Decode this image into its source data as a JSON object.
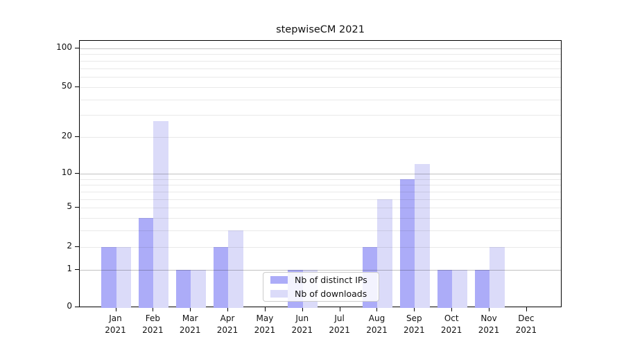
{
  "title": "stepwiseCM 2021",
  "legend": {
    "items": [
      {
        "label": "Nb of distinct IPs",
        "color": "#acacf8"
      },
      {
        "label": "Nb of downloads",
        "color": "#dbdbf9"
      }
    ]
  },
  "colors": {
    "distinct_ips_bar": "#acacf8",
    "downloads_bar": "#dbdbf9",
    "axis_spine": "#000000",
    "major_gridline": "#c2c2c2",
    "minor_gridline": "#eaeaea",
    "text": "#111111"
  },
  "y_axis": {
    "tick_labels": [
      "100",
      "50",
      "20",
      "10",
      "5",
      "2",
      "1",
      "0"
    ]
  },
  "x_axis": {
    "tick_labels": [
      "Jan 2021",
      "Feb 2021",
      "Mar 2021",
      "Apr 2021",
      "May 2021",
      "Jun 2021",
      "Jul 2021",
      "Aug 2021",
      "Sep 2021",
      "Oct 2021",
      "Nov 2021",
      "Dec 2021"
    ]
  },
  "chart_data": {
    "type": "bar",
    "title": "stepwiseCM 2021",
    "categories": [
      "Jan 2021",
      "Feb 2021",
      "Mar 2021",
      "Apr 2021",
      "May 2021",
      "Jun 2021",
      "Jul 2021",
      "Aug 2021",
      "Sep 2021",
      "Oct 2021",
      "Nov 2021",
      "Dec 2021"
    ],
    "series": [
      {
        "name": "Nb of distinct IPs",
        "color": "#acacf8",
        "values": [
          2,
          4,
          1,
          2,
          0,
          1,
          0,
          2,
          9,
          1,
          1,
          0
        ]
      },
      {
        "name": "Nb of downloads",
        "color": "#dbdbf9",
        "values": [
          2,
          27,
          1,
          3,
          0,
          1,
          0,
          6,
          12,
          1,
          2,
          0
        ]
      }
    ],
    "xlabel": "",
    "ylabel": "",
    "yscale": "log1p",
    "ylim": [
      0,
      115
    ],
    "yticks": [
      0,
      1,
      2,
      5,
      10,
      20,
      50,
      100
    ],
    "major_grid_values": [
      1,
      10,
      100
    ],
    "minor_grid_values": [
      2,
      3,
      4,
      5,
      6,
      7,
      8,
      9,
      20,
      30,
      40,
      50,
      60,
      70,
      80,
      90
    ],
    "grid": true,
    "legend_position": "lower center"
  }
}
